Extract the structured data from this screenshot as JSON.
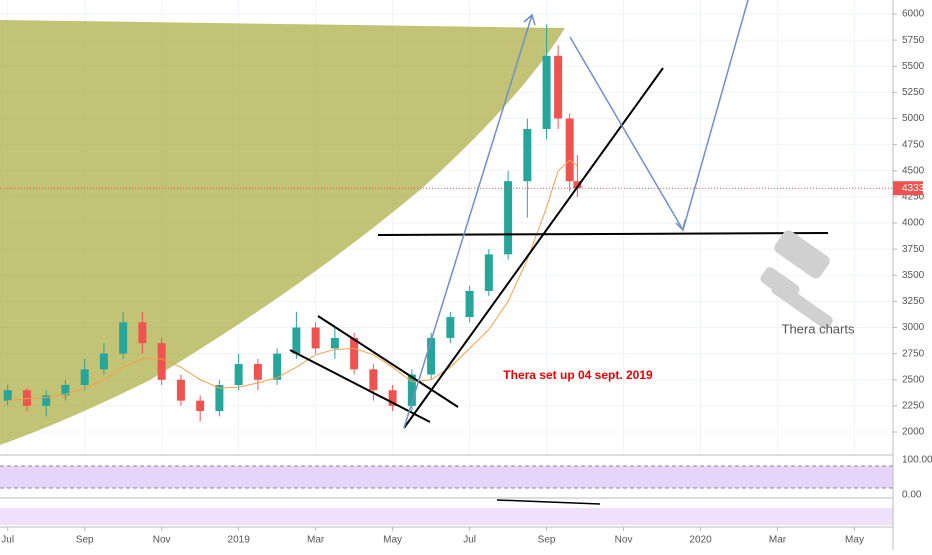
{
  "chart_data": {
    "type": "candlestick",
    "x": [
      0,
      0.5,
      1,
      1.5,
      2,
      2.5,
      3,
      3.5,
      4,
      4.5,
      5,
      5.5,
      6,
      6.5,
      7,
      7.5,
      8,
      8.5,
      9,
      9.5,
      10,
      10.5,
      11,
      11.5,
      12,
      12.5,
      13,
      13.5,
      14,
      14.3,
      14.6,
      14.8
    ],
    "open": [
      2300,
      2400,
      2250,
      2350,
      2450,
      2600,
      2750,
      3050,
      2850,
      2500,
      2300,
      2200,
      2450,
      2650,
      2500,
      2750,
      3000,
      2800,
      2900,
      2600,
      2400,
      2250,
      2550,
      2900,
      3100,
      3350,
      3700,
      4400,
      4900,
      5600,
      5000,
      4400
    ],
    "high": [
      2450,
      2420,
      2400,
      2500,
      2700,
      2850,
      3150,
      3150,
      2900,
      2550,
      2350,
      2500,
      2750,
      2700,
      2800,
      3150,
      3050,
      3000,
      2950,
      2650,
      2450,
      2600,
      2950,
      3150,
      3400,
      3750,
      4500,
      5000,
      5900,
      5700,
      5050,
      4650
    ],
    "low": [
      2250,
      2200,
      2150,
      2300,
      2400,
      2550,
      2700,
      2750,
      2450,
      2250,
      2100,
      2150,
      2400,
      2400,
      2450,
      2700,
      2750,
      2700,
      2550,
      2300,
      2200,
      2200,
      2500,
      2850,
      3050,
      3300,
      3650,
      4050,
      4800,
      4900,
      4300,
      4250
    ],
    "close": [
      2400,
      2250,
      2350,
      2450,
      2600,
      2750,
      3050,
      2850,
      2500,
      2300,
      2200,
      2450,
      2650,
      2500,
      2750,
      3000,
      2800,
      2900,
      2600,
      2400,
      2250,
      2550,
      2900,
      3100,
      3350,
      3700,
      4400,
      4900,
      5600,
      5000,
      4400,
      4333
    ],
    "ma": [
      2300,
      2320,
      2330,
      2360,
      2420,
      2500,
      2620,
      2700,
      2700,
      2620,
      2500,
      2420,
      2430,
      2470,
      2520,
      2620,
      2740,
      2790,
      2800,
      2740,
      2620,
      2480,
      2500,
      2620,
      2800,
      2980,
      3250,
      3650,
      4150,
      4500,
      4600,
      4550
    ],
    "up_color": "#26a69a",
    "down_color": "#ef5350",
    "ma_color": "#f5a04a",
    "last_price": 4333,
    "xlim": [
      -0.2,
      23
    ],
    "xticks": [
      {
        "value": 0,
        "label": "Jul"
      },
      {
        "value": 2,
        "label": "Sep"
      },
      {
        "value": 4,
        "label": "Nov"
      },
      {
        "value": 6,
        "label": "2019"
      },
      {
        "value": 8,
        "label": "Mar"
      },
      {
        "value": 10,
        "label": "May"
      },
      {
        "value": 12,
        "label": "Jul"
      },
      {
        "value": 14,
        "label": "Sep"
      },
      {
        "value": 16,
        "label": "Nov"
      },
      {
        "value": 18,
        "label": "2020"
      },
      {
        "value": 20,
        "label": "Mar"
      },
      {
        "value": 22,
        "label": "May"
      }
    ],
    "ylim": [
      1780,
      6134
    ],
    "yticks": [
      2000,
      2250,
      2500,
      2750,
      3000,
      3250,
      3500,
      3750,
      4000,
      4250,
      4500,
      4750,
      5000,
      5250,
      5500,
      5750,
      6000
    ],
    "annotations": [
      "Thera set up 04 sept. 2019",
      "Thera charts"
    ],
    "indicator_labels": [
      "100.00",
      "0.00"
    ]
  }
}
